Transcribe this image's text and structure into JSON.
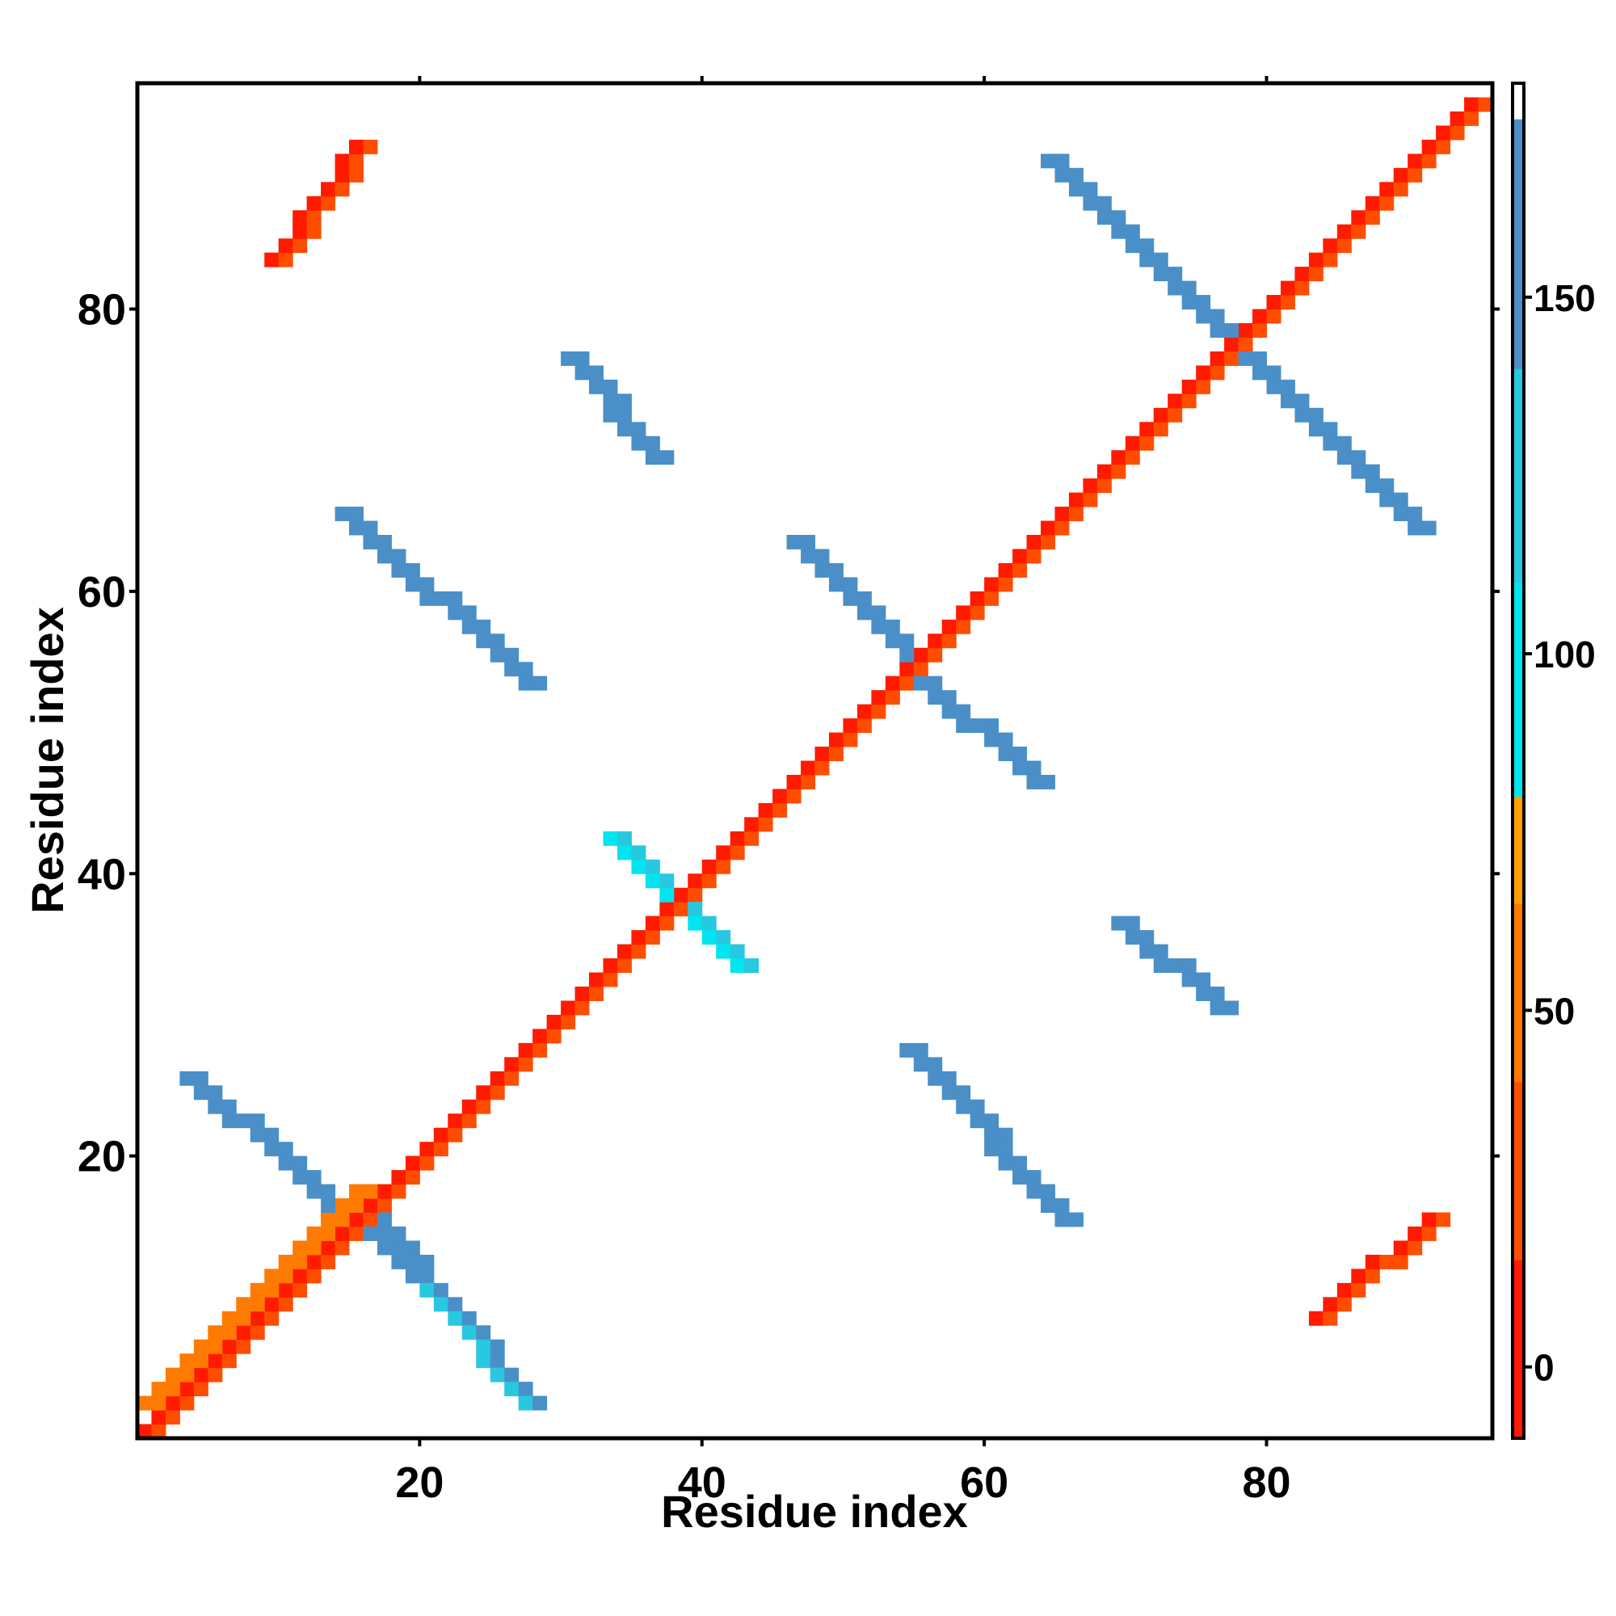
{
  "chart_data": {
    "type": "heatmap",
    "title": "",
    "xlabel": "Residue index",
    "ylabel": "Residue index",
    "xlim": [
      0,
      96
    ],
    "ylim": [
      0,
      96
    ],
    "x_ticks": [
      20,
      40,
      60,
      80
    ],
    "y_ticks": [
      20,
      40,
      60,
      80
    ],
    "grid": false,
    "colorbar": {
      "range": [
        -10,
        180
      ],
      "ticks": [
        0,
        50,
        100,
        150
      ],
      "segments": [
        {
          "from": -10,
          "to": 15,
          "color": "#ff1a00"
        },
        {
          "from": 15,
          "to": 40,
          "color": "#ff4d00"
        },
        {
          "from": 40,
          "to": 65,
          "color": "#ff7a00"
        },
        {
          "from": 65,
          "to": 80,
          "color": "#ffa000"
        },
        {
          "from": 80,
          "to": 110,
          "color": "#00e5f0"
        },
        {
          "from": 110,
          "to": 140,
          "color": "#28c8e0"
        },
        {
          "from": 140,
          "to": 175,
          "color": "#4a8fc8"
        },
        {
          "from": 175,
          "to": 180,
          "color": "#ffffff"
        }
      ]
    },
    "regions": [
      {
        "name": "diagonal band",
        "from": [
          1,
          1
        ],
        "to": [
          95,
          95
        ],
        "width": 2,
        "value": 10
      },
      {
        "name": "N-term helix band",
        "from": [
          1,
          3
        ],
        "to": [
          16,
          18
        ],
        "width": 2,
        "value": 45
      },
      {
        "name": "antiparallel contact",
        "from": [
          4,
          26
        ],
        "to": [
          20,
          12
        ],
        "width": 2,
        "value": 150
      },
      {
        "name": "antiparallel contact",
        "from": [
          17,
          16
        ],
        "to": [
          28,
          3
        ],
        "width": 2,
        "value": 140
      },
      {
        "name": "parallel strip",
        "from": [
          10,
          84
        ],
        "to": [
          16,
          92
        ],
        "width": 2,
        "value": 15
      },
      {
        "name": "parallel strip",
        "from": [
          84,
          9
        ],
        "to": [
          92,
          16
        ],
        "width": 2,
        "value": 15
      },
      {
        "name": "antiparallel contact",
        "from": [
          15,
          66
        ],
        "to": [
          28,
          54
        ],
        "width": 2,
        "value": 150
      },
      {
        "name": "antiparallel contact",
        "from": [
          55,
          28
        ],
        "to": [
          66,
          16
        ],
        "width": 2,
        "value": 150
      },
      {
        "name": "antiparallel contact",
        "from": [
          31,
          77
        ],
        "to": [
          37,
          70
        ],
        "width": 2,
        "value": 150
      },
      {
        "name": "antiparallel contact",
        "from": [
          70,
          37
        ],
        "to": [
          77,
          31
        ],
        "width": 2,
        "value": 150
      },
      {
        "name": "antiparallel contact",
        "from": [
          47,
          64
        ],
        "to": [
          55,
          56
        ],
        "width": 2,
        "value": 150
      },
      {
        "name": "antiparallel contact",
        "from": [
          56,
          54
        ],
        "to": [
          64,
          47
        ],
        "width": 2,
        "value": 150
      },
      {
        "name": "antiparallel contact",
        "from": [
          65,
          91
        ],
        "to": [
          77,
          79
        ],
        "width": 2,
        "value": 150
      },
      {
        "name": "antiparallel contact",
        "from": [
          79,
          77
        ],
        "to": [
          91,
          65
        ],
        "width": 2,
        "value": 150
      },
      {
        "name": "helix-helix block",
        "from": [
          34,
          43
        ],
        "to": [
          38,
          39
        ],
        "width": 2,
        "value": 110
      },
      {
        "name": "helix-helix block",
        "from": [
          39,
          38
        ],
        "to": [
          43,
          34
        ],
        "width": 2,
        "value": 110
      }
    ]
  }
}
